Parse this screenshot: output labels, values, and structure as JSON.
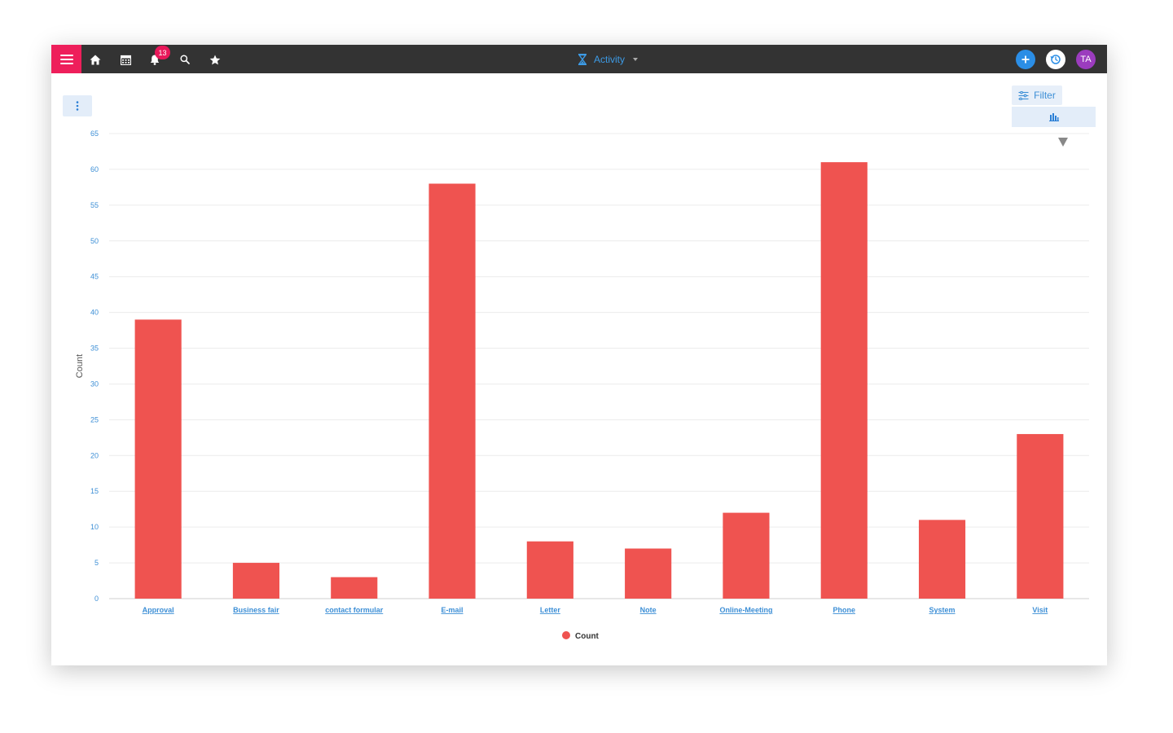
{
  "header": {
    "title": "Activity",
    "notification_count": "13",
    "avatar_initials": "TA"
  },
  "toolbar": {
    "filter_label": "Filter"
  },
  "colors": {
    "topbar": "#333333",
    "menu_accent": "#ee1f5b",
    "bar": "#ef5350",
    "axis_text": "#3d8fd6",
    "avatar": "#9b3cbe"
  },
  "icons": [
    "menu-icon",
    "home-icon",
    "calendar-icon",
    "bell-icon",
    "search-icon",
    "star-icon",
    "hourglass-icon",
    "plus-icon",
    "history-icon",
    "more-vertical-icon",
    "filter-sliders-icon",
    "bar-chart-icon"
  ],
  "chart_data": {
    "type": "bar",
    "categories": [
      "Approval",
      "Business fair",
      "contact formular",
      "E-mail",
      "Letter",
      "Note",
      "Online-Meeting",
      "Phone",
      "System",
      "Visit"
    ],
    "series": [
      {
        "name": "Count",
        "values": [
          39,
          5,
          3,
          58,
          8,
          7,
          12,
          61,
          11,
          23
        ]
      }
    ],
    "ylabel": "Count",
    "xlabel": "",
    "ylim": [
      0,
      65
    ],
    "yticks": [
      0,
      5,
      10,
      15,
      20,
      25,
      30,
      35,
      40,
      45,
      50,
      55,
      60,
      65
    ],
    "grid": true,
    "legend": "bottom-center"
  }
}
